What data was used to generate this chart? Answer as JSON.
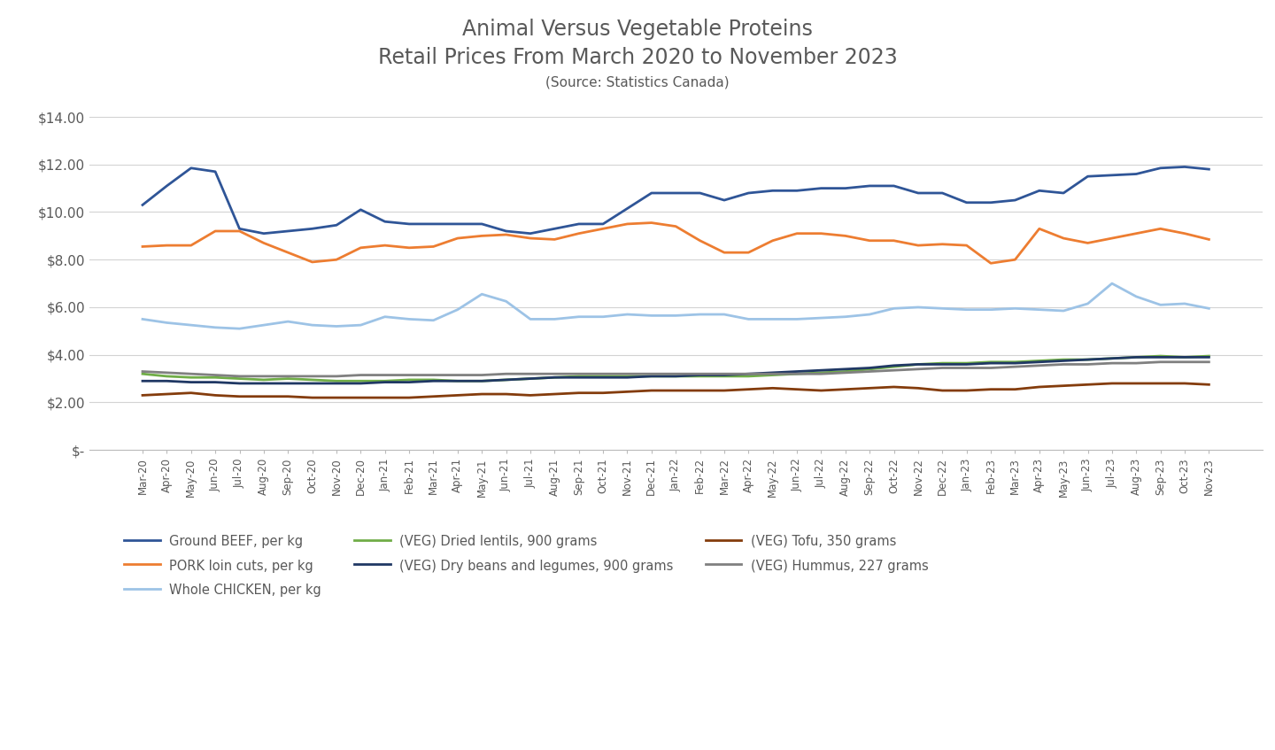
{
  "title_line1": "Animal Versus Vegetable Proteins",
  "title_line2": "Retail Prices From March 2020 to November 2023",
  "title_line3": "(Source: Statistics Canada)",
  "xlabel_labels": [
    "Mar-20",
    "Apr-20",
    "May-20",
    "Jun-20",
    "Jul-20",
    "Aug-20",
    "Sep-20",
    "Oct-20",
    "Nov-20",
    "Dec-20",
    "Jan-21",
    "Feb-21",
    "Mar-21",
    "Apr-21",
    "May-21",
    "Jun-21",
    "Jul-21",
    "Aug-21",
    "Sep-21",
    "Oct-21",
    "Nov-21",
    "Dec-21",
    "Jan-22",
    "Feb-22",
    "Mar-22",
    "Apr-22",
    "May-22",
    "Jun-22",
    "Jul-22",
    "Aug-22",
    "Sep-22",
    "Oct-22",
    "Nov-22",
    "Dec-22",
    "Jan-23",
    "Feb-23",
    "Mar-23",
    "Apr-23",
    "May-23",
    "Jun-23",
    "Jul-23",
    "Aug-23",
    "Sep-23",
    "Oct-23",
    "Nov-23"
  ],
  "ylim": [
    0,
    14.5
  ],
  "yticks": [
    0,
    2,
    4,
    6,
    8,
    10,
    12,
    14
  ],
  "ytick_labels": [
    "$-",
    "$2.00",
    "$4.00",
    "$6.00",
    "$8.00",
    "$10.00",
    "$12.00",
    "$14.00"
  ],
  "series": [
    {
      "name": "Ground BEEF, per kg",
      "color": "#2F5597",
      "linewidth": 2.0,
      "values": [
        10.3,
        11.1,
        11.85,
        11.7,
        9.3,
        9.1,
        9.2,
        9.3,
        9.45,
        10.1,
        9.6,
        9.5,
        9.5,
        9.5,
        9.5,
        9.2,
        9.1,
        9.3,
        9.5,
        9.5,
        10.15,
        10.8,
        10.8,
        10.8,
        10.5,
        10.8,
        10.9,
        10.9,
        11.0,
        11.0,
        11.1,
        11.1,
        10.8,
        10.8,
        10.4,
        10.4,
        10.5,
        10.9,
        10.8,
        11.5,
        11.55,
        11.6,
        11.85,
        11.9,
        11.8
      ]
    },
    {
      "name": "PORK loin cuts, per kg",
      "color": "#ED7D31",
      "linewidth": 2.0,
      "values": [
        8.55,
        8.6,
        8.6,
        9.2,
        9.2,
        8.7,
        8.3,
        7.9,
        8.0,
        8.5,
        8.6,
        8.5,
        8.55,
        8.9,
        9.0,
        9.05,
        8.9,
        8.85,
        9.1,
        9.3,
        9.5,
        9.55,
        9.4,
        8.8,
        8.3,
        8.3,
        8.8,
        9.1,
        9.1,
        9.0,
        8.8,
        8.8,
        8.6,
        8.65,
        8.6,
        7.85,
        8.0,
        9.3,
        8.9,
        8.7,
        8.9,
        9.1,
        9.3,
        9.1,
        8.85
      ]
    },
    {
      "name": "Whole CHICKEN, per kg",
      "color": "#9DC3E6",
      "linewidth": 2.0,
      "values": [
        5.5,
        5.35,
        5.25,
        5.15,
        5.1,
        5.25,
        5.4,
        5.25,
        5.2,
        5.25,
        5.6,
        5.5,
        5.45,
        5.9,
        6.55,
        6.25,
        5.5,
        5.5,
        5.6,
        5.6,
        5.7,
        5.65,
        5.65,
        5.7,
        5.7,
        5.5,
        5.5,
        5.5,
        5.55,
        5.6,
        5.7,
        5.95,
        6.0,
        5.95,
        5.9,
        5.9,
        5.95,
        5.9,
        5.85,
        6.15,
        7.0,
        6.45,
        6.1,
        6.15,
        5.95
      ]
    },
    {
      "name": "(VEG) Dried lentils, 900 grams",
      "color": "#70AD47",
      "linewidth": 2.0,
      "values": [
        3.2,
        3.1,
        3.05,
        3.05,
        3.0,
        2.95,
        3.0,
        2.95,
        2.9,
        2.9,
        2.9,
        2.95,
        2.95,
        2.9,
        2.9,
        2.95,
        3.0,
        3.05,
        3.1,
        3.1,
        3.1,
        3.1,
        3.1,
        3.1,
        3.1,
        3.1,
        3.15,
        3.2,
        3.25,
        3.3,
        3.4,
        3.5,
        3.6,
        3.65,
        3.65,
        3.7,
        3.7,
        3.75,
        3.8,
        3.8,
        3.85,
        3.9,
        3.95,
        3.9,
        3.95
      ]
    },
    {
      "name": "(VEG) Dry beans and legumes, 900 grams",
      "color": "#203864",
      "linewidth": 2.0,
      "values": [
        2.9,
        2.9,
        2.85,
        2.85,
        2.8,
        2.8,
        2.8,
        2.8,
        2.8,
        2.8,
        2.85,
        2.85,
        2.9,
        2.9,
        2.9,
        2.95,
        3.0,
        3.05,
        3.05,
        3.05,
        3.05,
        3.1,
        3.1,
        3.15,
        3.15,
        3.2,
        3.25,
        3.3,
        3.35,
        3.4,
        3.45,
        3.55,
        3.6,
        3.6,
        3.6,
        3.65,
        3.65,
        3.7,
        3.75,
        3.8,
        3.85,
        3.9,
        3.9,
        3.9,
        3.9
      ]
    },
    {
      "name": "(VEG) Tofu, 350 grams",
      "color": "#843C0C",
      "linewidth": 2.0,
      "values": [
        2.3,
        2.35,
        2.4,
        2.3,
        2.25,
        2.25,
        2.25,
        2.2,
        2.2,
        2.2,
        2.2,
        2.2,
        2.25,
        2.3,
        2.35,
        2.35,
        2.3,
        2.35,
        2.4,
        2.4,
        2.45,
        2.5,
        2.5,
        2.5,
        2.5,
        2.55,
        2.6,
        2.55,
        2.5,
        2.55,
        2.6,
        2.65,
        2.6,
        2.5,
        2.5,
        2.55,
        2.55,
        2.65,
        2.7,
        2.75,
        2.8,
        2.8,
        2.8,
        2.8,
        2.75
      ]
    },
    {
      "name": "(VEG) Hummus, 227 grams",
      "color": "#808080",
      "linewidth": 2.0,
      "values": [
        3.3,
        3.25,
        3.2,
        3.15,
        3.1,
        3.1,
        3.1,
        3.1,
        3.1,
        3.15,
        3.15,
        3.15,
        3.15,
        3.15,
        3.15,
        3.2,
        3.2,
        3.2,
        3.2,
        3.2,
        3.2,
        3.2,
        3.2,
        3.2,
        3.2,
        3.2,
        3.2,
        3.2,
        3.2,
        3.25,
        3.3,
        3.35,
        3.4,
        3.45,
        3.45,
        3.45,
        3.5,
        3.55,
        3.6,
        3.6,
        3.65,
        3.65,
        3.7,
        3.7,
        3.7
      ]
    }
  ],
  "background_color": "#FFFFFF",
  "gridcolor": "#D3D3D3",
  "title_color": "#595959",
  "tick_color": "#595959",
  "legend_fontsize": 10.5,
  "title_fontsize_1": 17,
  "title_fontsize_2": 17,
  "title_fontsize_3": 11
}
